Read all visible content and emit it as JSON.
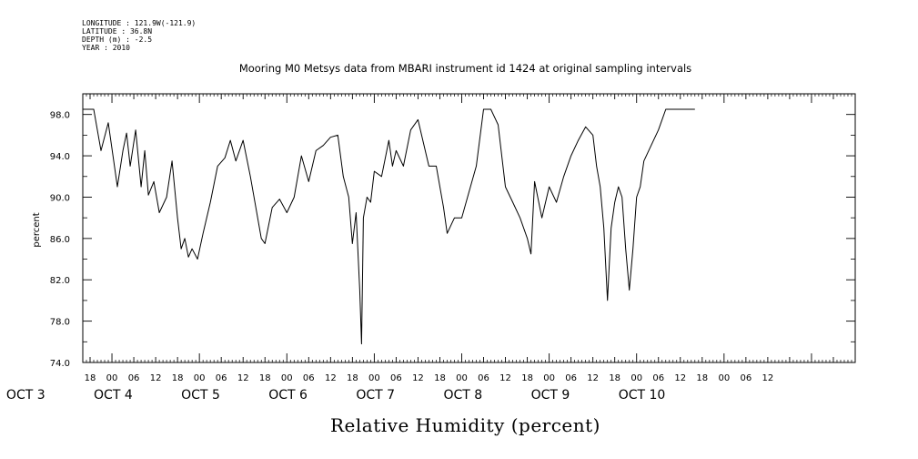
{
  "metadata": {
    "longitude": "LONGITUDE : 121.9W(-121.9)",
    "latitude": "LATITUDE : 36.8N",
    "depth": "DEPTH (m) : -2.5",
    "year": "YEAR : 2010"
  },
  "chart_data": {
    "type": "line",
    "title": "Mooring M0 Metsys data from MBARI instrument id 1424 at original sampling intervals",
    "xlabel": "Relative Humidity (percent)",
    "ylabel": "percent",
    "ylim": [
      74.0,
      100.0
    ],
    "y_ticks": [
      "74.0",
      "78.0",
      "82.0",
      "86.0",
      "90.0",
      "94.0",
      "98.0"
    ],
    "x_range_hours": [
      -8,
      204
    ],
    "x_hour_ticks": [
      "18",
      "00",
      "06",
      "12",
      "18",
      "00",
      "06",
      "12",
      "18",
      "00",
      "06",
      "12",
      "18",
      "00",
      "06",
      "12",
      "18",
      "00",
      "06",
      "12",
      "18",
      "00",
      "06",
      "12",
      "18",
      "00",
      "06",
      "12",
      "18",
      "00",
      "06",
      "12"
    ],
    "x_day_labels": [
      "OCT  3",
      "OCT  4",
      "OCT  5",
      "OCT  6",
      "OCT  7",
      "OCT  8",
      "OCT  9",
      "OCT 10"
    ],
    "grid": false,
    "series": [
      {
        "x": [
          "Oct 3 16:00",
          "Oct 3 19:00",
          "Oct 3 21:00",
          "Oct 3 23:00",
          "Oct 4 00:30",
          "Oct 4 01:30",
          "Oct 4 03:00",
          "Oct 4 04:00",
          "Oct 4 05:00",
          "Oct 4 06:30",
          "Oct 4 08:00",
          "Oct 4 09:00",
          "Oct 4 10:00",
          "Oct 4 11:30",
          "Oct 4 13:00",
          "Oct 4 15:00",
          "Oct 4 16:30",
          "Oct 4 18:00",
          "Oct 4 19:00",
          "Oct 4 20:00",
          "Oct 4 21:00",
          "Oct 4 22:00",
          "Oct 4 23:30",
          "Oct 5 01:00",
          "Oct 5 03:00",
          "Oct 5 05:00",
          "Oct 5 07:00",
          "Oct 5 08:30",
          "Oct 5 10:00",
          "Oct 5 12:00",
          "Oct 5 14:00",
          "Oct 5 15:30",
          "Oct 5 17:00",
          "Oct 5 18:00",
          "Oct 5 20:00",
          "Oct 5 22:00",
          "Oct 6 00:00",
          "Oct 6 02:00",
          "Oct 6 04:00",
          "Oct 6 06:00",
          "Oct 6 08:00",
          "Oct 6 10:00",
          "Oct 6 12:00",
          "Oct 6 14:00",
          "Oct 6 15:30",
          "Oct 6 17:00",
          "Oct 6 18:00",
          "Oct 6 19:00",
          "Oct 6 20:00",
          "Oct 6 20:30",
          "Oct 6 21:00",
          "Oct 6 22:00",
          "Oct 6 23:00",
          "Oct 7 00:00",
          "Oct 7 02:00",
          "Oct 7 04:00",
          "Oct 7 05:00",
          "Oct 7 06:00",
          "Oct 7 08:00",
          "Oct 7 10:00",
          "Oct 7 12:00",
          "Oct 7 13:00",
          "Oct 7 15:00",
          "Oct 7 17:00",
          "Oct 7 19:00",
          "Oct 7 20:00",
          "Oct 7 22:00",
          "Oct 8 00:00",
          "Oct 8 02:00",
          "Oct 8 04:00",
          "Oct 8 06:00",
          "Oct 8 08:00",
          "Oct 8 10:00",
          "Oct 8 12:00",
          "Oct 8 14:00",
          "Oct 8 16:00",
          "Oct 8 18:00",
          "Oct 8 19:00",
          "Oct 8 20:00",
          "Oct 8 22:00",
          "Oct 9 00:00",
          "Oct 9 02:00",
          "Oct 9 04:00",
          "Oct 9 06:00",
          "Oct 9 08:00",
          "Oct 9 10:00",
          "Oct 9 12:00",
          "Oct 9 13:00",
          "Oct 9 14:00",
          "Oct 9 15:00",
          "Oct 9 16:00",
          "Oct 9 17:00",
          "Oct 9 18:00",
          "Oct 9 19:00",
          "Oct 9 20:00",
          "Oct 9 21:00",
          "Oct 9 22:00",
          "Oct 9 23:00",
          "Oct 10 00:00",
          "Oct 10 01:00",
          "Oct 10 02:00",
          "Oct 10 04:00",
          "Oct 10 06:00",
          "Oct 10 08:00",
          "Oct 10 10:00",
          "Oct 10 12:00",
          "Oct 10 14:00",
          "Oct 10 16:00"
        ],
        "y": [
          98.5,
          98.5,
          94.5,
          97.2,
          93.5,
          91.0,
          94.5,
          96.2,
          93.0,
          96.5,
          91.0,
          94.5,
          90.2,
          91.5,
          88.5,
          90.0,
          93.5,
          88.0,
          85.0,
          86.0,
          84.2,
          85.0,
          84.0,
          86.5,
          89.5,
          93.0,
          93.8,
          95.5,
          93.5,
          95.5,
          92.0,
          89.0,
          86.0,
          85.5,
          89.0,
          89.8,
          88.5,
          90.0,
          94.0,
          91.5,
          94.5,
          95.0,
          95.8,
          96.0,
          92.0,
          90.0,
          85.5,
          88.5,
          81.0,
          75.8,
          88.0,
          90.0,
          89.5,
          92.5,
          92.0,
          95.5,
          93.0,
          94.5,
          93.0,
          96.5,
          97.5,
          96.0,
          93.0,
          93.0,
          89.0,
          86.5,
          88.0,
          88.0,
          90.5,
          93.0,
          98.5,
          98.5,
          97.0,
          91.0,
          89.5,
          88.0,
          86.0,
          84.5,
          91.5,
          88.0,
          91.0,
          89.5,
          92.0,
          94.0,
          95.5,
          96.8,
          96.0,
          93.0,
          91.0,
          87.0,
          80.0,
          87.0,
          89.5,
          91.0,
          90.0,
          85.0,
          81.0,
          85.0,
          90.0,
          91.0,
          93.5,
          95.0,
          96.5,
          98.5,
          98.5,
          98.5,
          98.5,
          98.5
        ]
      }
    ]
  }
}
